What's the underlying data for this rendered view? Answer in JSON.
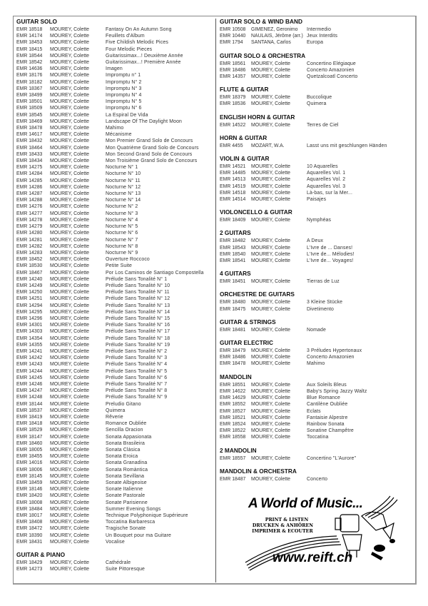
{
  "left_sections": [
    {
      "heading": "GUITAR SOLO",
      "rows": [
        [
          "EMR 18518",
          "MOUREY, Colette",
          "Fantasy On An Autumn Song"
        ],
        [
          "EMR 14174",
          "MOUREY, Colette",
          "Feuillets d'Album"
        ],
        [
          "EMR 18453",
          "MOUREY, Colette",
          "Five Childish Melodic Pices"
        ],
        [
          "EMR 18415",
          "MOUREY, Colette",
          "Four Melodic Pieces"
        ],
        [
          "EMR 18544",
          "MOUREY, Colette",
          "Guitarissimax...! Deuxième Année"
        ],
        [
          "EMR 18542",
          "MOUREY, Colette",
          "Guitarissimax...! Première Année"
        ],
        [
          "EMR 14636",
          "MOUREY, Colette",
          "Imagen"
        ],
        [
          "EMR 18176",
          "MOUREY, Colette",
          "Impromptu n° 1"
        ],
        [
          "EMR 18182",
          "MOUREY, Colette",
          "Impromptu N° 2"
        ],
        [
          "EMR 18367",
          "MOUREY, Colette",
          "Impromptu N° 3"
        ],
        [
          "EMR 18499",
          "MOUREY, Colette",
          "Impromptu N° 4"
        ],
        [
          "EMR 18501",
          "MOUREY, Colette",
          "Impromptu N° 5"
        ],
        [
          "EMR 18509",
          "MOUREY, Colette",
          "Impromptu N° 6"
        ],
        [
          "EMR 18545",
          "MOUREY, Colette",
          "La Espiral De Vida"
        ],
        [
          "EMR 18469",
          "MOUREY, Colette",
          "Landscape Of The Daylight Moon"
        ],
        [
          "EMR 18478",
          "MOUREY, Colette",
          "Mahimo"
        ],
        [
          "EMR 14617",
          "MOUREY, Colette",
          "Mécanisme"
        ],
        [
          "EMR 18432",
          "MOUREY, Colette",
          "Mon Premier Grand Solo de Concours"
        ],
        [
          "EMR 18464",
          "MOUREY, Colette",
          "Mon Quatrième Grand Solo de Concours"
        ],
        [
          "EMR 18433",
          "MOUREY, Colette",
          "Mon Second Grand Solo de Concours"
        ],
        [
          "EMR 18434",
          "MOUREY, Colette",
          "Mon Troisième Grand Solo de Concours"
        ],
        [
          "EMR 14275",
          "MOUREY, Colette",
          "Nocturne N° 1"
        ],
        [
          "EMR 14284",
          "MOUREY, Colette",
          "Nocturne N° 10"
        ],
        [
          "EMR 14285",
          "MOUREY, Colette",
          "Nocturne N° 11"
        ],
        [
          "EMR 14286",
          "MOUREY, Colette",
          "Nocturne N° 12"
        ],
        [
          "EMR 14287",
          "MOUREY, Colette",
          "Nocturne N° 13"
        ],
        [
          "EMR 14288",
          "MOUREY, Colette",
          "Nocturne N° 14"
        ],
        [
          "EMR 14276",
          "MOUREY, Colette",
          "Nocturne N° 2"
        ],
        [
          "EMR 14277",
          "MOUREY, Colette",
          "Nocturne N° 3"
        ],
        [
          "EMR 14278",
          "MOUREY, Colette",
          "Nocturne N° 4"
        ],
        [
          "EMR 14279",
          "MOUREY, Colette",
          "Nocturne N° 5"
        ],
        [
          "EMR 14280",
          "MOUREY, Colette",
          "Nocturne N° 6"
        ],
        [
          "EMR 14281",
          "MOUREY, Colette",
          "Nocturne N° 7"
        ],
        [
          "EMR 14282",
          "MOUREY, Colette",
          "Nocturne N° 8"
        ],
        [
          "EMR 14283",
          "MOUREY, Colette",
          "Nocturne N° 9"
        ],
        [
          "EMR 18452",
          "MOUREY, Colette",
          "Ouverture Roccoco"
        ],
        [
          "EMR 18530",
          "MOUREY, Colette",
          "Petite Suite"
        ],
        [
          "EMR 18467",
          "MOUREY, Colette",
          "Por Los Caminos de Santiago Compostella"
        ],
        [
          "EMR 14240",
          "MOUREY, Colette",
          "Prélude Sans Tonalité N° 1"
        ],
        [
          "EMR 14249",
          "MOUREY, Colette",
          "Prélude Sans Tonalité N° 10"
        ],
        [
          "EMR 14250",
          "MOUREY, Colette",
          "Prélude Sans Tonalité N° 11"
        ],
        [
          "EMR 14251",
          "MOUREY, Colette",
          "Prélude Sans Tonalité N° 12"
        ],
        [
          "EMR 14294",
          "MOUREY, Colette",
          "Prélude Sans Tonalité N° 13"
        ],
        [
          "EMR 14295",
          "MOUREY, Colette",
          "Prélude Sans Tonalité N° 14"
        ],
        [
          "EMR 14296",
          "MOUREY, Colette",
          "Prélude Sans Tonalité N° 15"
        ],
        [
          "EMR 14301",
          "MOUREY, Colette",
          "Prélude Sans Tonalité N° 16"
        ],
        [
          "EMR 14303",
          "MOUREY, Colette",
          "Prélude Sans Tonalité N° 17"
        ],
        [
          "EMR 14354",
          "MOUREY, Colette",
          "Prélude Sans Tonalité N° 18"
        ],
        [
          "EMR 14355",
          "MOUREY, Colette",
          "Prélude Sans Tonalité N° 19"
        ],
        [
          "EMR 14241",
          "MOUREY, Colette",
          "Prélude Sans Tonalité N° 2"
        ],
        [
          "EMR 14242",
          "MOUREY, Colette",
          "Prélude Sans Tonalité N° 3"
        ],
        [
          "EMR 14243",
          "MOUREY, Colette",
          "Prélude Sans Tonalité N° 4"
        ],
        [
          "EMR 14244",
          "MOUREY, Colette",
          "Prélude Sans Tonalité N° 5"
        ],
        [
          "EMR 14245",
          "MOUREY, Colette",
          "Prélude Sans Tonalité N° 6"
        ],
        [
          "EMR 14246",
          "MOUREY, Colette",
          "Prélude Sans Tonalité N° 7"
        ],
        [
          "EMR 14247",
          "MOUREY, Colette",
          "Prélude Sans Tonalité N° 8"
        ],
        [
          "EMR 14248",
          "MOUREY, Colette",
          "Prélude Sans Tonalité N° 9"
        ],
        [
          "EMR 18144",
          "MOUREY, Colette",
          "Preludio Gitano"
        ],
        [
          "EMR 18537",
          "MOUREY, Colette",
          "Quimera"
        ],
        [
          "EMR 18419",
          "MOUREY, Colette",
          "Rêverie"
        ],
        [
          "EMR 18418",
          "MOUREY, Colette",
          "Romance Oubliée"
        ],
        [
          "EMR 18529",
          "MOUREY, Colette",
          "Sencilla Oracion"
        ],
        [
          "EMR 18147",
          "MOUREY, Colette",
          "Sonata Appasionata"
        ],
        [
          "EMR 18460",
          "MOUREY, Colette",
          "Sonata Brasileira"
        ],
        [
          "EMR 18005",
          "MOUREY, Colette",
          "Sonata Clàsica"
        ],
        [
          "EMR 18455",
          "MOUREY, Colette",
          "Sonata Eroica"
        ],
        [
          "EMR 14016",
          "MOUREY, Colette",
          "Sonata Granadina"
        ],
        [
          "EMR 18006",
          "MOUREY, Colette",
          "Sonata Romàntica"
        ],
        [
          "EMR 18145",
          "MOUREY, Colette",
          "Sonata Sevillana"
        ],
        [
          "EMR 18459",
          "MOUREY, Colette",
          "Sonate Albigeoise"
        ],
        [
          "EMR 18146",
          "MOUREY, Colette",
          "Sonate Italienne"
        ],
        [
          "EMR 18420",
          "MOUREY, Colette",
          "Sonate Pastorale"
        ],
        [
          "EMR 18008",
          "MOUREY, Colette",
          "Sonate Parisienne"
        ],
        [
          "EMR 18484",
          "MOUREY, Colette",
          "Summer Evening Songs"
        ],
        [
          "EMR 18017",
          "MOUREY, Colette",
          "Technique Polyphonique Supérieure"
        ],
        [
          "EMR 18408",
          "MOUREY, Colette",
          "Toccatina Barbaresca"
        ],
        [
          "EMR 18472",
          "MOUREY, Colette",
          "Tragische Sonate"
        ],
        [
          "EMR 18390",
          "MOUREY, Colette",
          "Un Bouquet pour ma Guitare"
        ],
        [
          "EMR 18431",
          "MOUREY, Colette",
          "Vocalise"
        ]
      ]
    },
    {
      "heading": "GUITAR & PIANO",
      "rows": [
        [
          "EMR 18429",
          "MOUREY, Colette",
          "Cathédrale"
        ],
        [
          "EMR 14273",
          "MOUREY, Colette",
          "Suite Pittoresque"
        ]
      ]
    }
  ],
  "right_sections": [
    {
      "heading": "GUITAR SOLO & WIND BAND",
      "rows": [
        [
          "EMR 10508",
          "GIMENEZ, Geronimo",
          "Intermedio"
        ],
        [
          "EMR 10440",
          "NAULAIS, Jérôme (arr.)",
          "Jeux Interdits"
        ],
        [
          "EMR 1794",
          "SANTANA, Carlos",
          "Europa"
        ]
      ]
    },
    {
      "heading": "GUITAR SOLO & ORCHESTRA",
      "rows": [
        [
          "EMR 18561",
          "MOUREY, Colette",
          "Concertino Elégiaque"
        ],
        [
          "EMR 18486",
          "MOUREY, Colette",
          "Concerto Amazonien"
        ],
        [
          "EMR 14357",
          "MOUREY, Colette",
          "Quetzalcoatl Concerto"
        ]
      ]
    },
    {
      "heading": "FLUTE & GUITAR",
      "rows": [
        [
          "EMR 18379",
          "MOUREY, Colette",
          "Buccolique"
        ],
        [
          "EMR 18536",
          "MOUREY, Colette",
          "Quimera"
        ]
      ]
    },
    {
      "heading": "ENGLISH HORN & GUITAR",
      "rows": [
        [
          "EMR 14522",
          "MOUREY, Colette",
          "Terres de Ciel"
        ]
      ]
    },
    {
      "heading": "HORN & GUITAR",
      "rows": [
        [
          "EMR 4455",
          "MOZART, W.A.",
          "Lasst uns mit geschlungen Händen"
        ]
      ]
    },
    {
      "heading": "VIOLIN & GUITAR",
      "rows": [
        [
          "EMR 14521",
          "MOUREY, Colette",
          "10 Aquarelles"
        ],
        [
          "EMR 14485",
          "MOUREY, Colette",
          "Aquarelles Vol. 1"
        ],
        [
          "EMR 14513",
          "MOUREY, Colette",
          "Aquarelles Vol. 2"
        ],
        [
          "EMR 14519",
          "MOUREY, Colette",
          "Aquarelles Vol. 3"
        ],
        [
          "EMR 14518",
          "MOUREY, Colette",
          "Là-bas, sur la Mer..."
        ],
        [
          "EMR 14514",
          "MOUREY, Colette",
          "Paisajes"
        ]
      ]
    },
    {
      "heading": "VIOLONCELLO & GUITAR",
      "rows": [
        [
          "EMR 18409",
          "MOUREY, Colette",
          "Nymphéas"
        ]
      ]
    },
    {
      "heading": "2 GUITARS",
      "rows": [
        [
          "EMR 18482",
          "MOUREY, Colette",
          "A Deux"
        ],
        [
          "EMR 18543",
          "MOUREY, Colette",
          "L'Ivre de ... Danses!"
        ],
        [
          "EMR 18540",
          "MOUREY, Colette",
          "L'Ivre de... Mélodies!"
        ],
        [
          "EMR 18541",
          "MOUREY, Colette",
          "L'Ivre de... Voyages!"
        ]
      ]
    },
    {
      "heading": "4 GUITARS",
      "rows": [
        [
          "EMR 18451",
          "MOUREY, Colette",
          "Tierras de Luz"
        ]
      ]
    },
    {
      "heading": "ORCHESTRE DE GUITARS",
      "rows": [
        [
          "EMR 18480",
          "MOUREY, Colette",
          "3 Kleine Stücke"
        ],
        [
          "EMR 18475",
          "MOUREY, Colette",
          "Divetimento"
        ]
      ]
    },
    {
      "heading": "GUITAR & STRINGS",
      "rows": [
        [
          "EMR 18481",
          "MOUREY, Colette",
          "Nomade"
        ]
      ]
    },
    {
      "heading": "GUITAR ELECTRIC",
      "rows": [
        [
          "EMR 18479",
          "MOUREY, Colette",
          "3 Préludes Hypertonaux"
        ],
        [
          "EMR 18486",
          "MOUREY, Colette",
          "Concerto Amazonien"
        ],
        [
          "EMR 18478",
          "MOUREY, Colette",
          "Mahimo"
        ]
      ]
    },
    {
      "heading": "MANDOLIN",
      "rows": [
        [
          "EMR 18551",
          "MOUREY, Colette",
          "Aux Soleils Bleus"
        ],
        [
          "EMR 14622",
          "MOUREY, Colette",
          "Baby's Spring Jazzy Waltz"
        ],
        [
          "EMR 14629",
          "MOUREY, Colette",
          "Blue Romance"
        ],
        [
          "EMR 18552",
          "MOUREY, Colette",
          "Cantilène Oubliée"
        ],
        [
          "EMR 18527",
          "MOUREY, Colette",
          "Eclats"
        ],
        [
          "EMR 18521",
          "MOUREY, Colette",
          "Fantaisie Alpestre"
        ],
        [
          "EMR 18524",
          "MOUREY, Colette",
          "Rainbow Sonata"
        ],
        [
          "EMR 18522",
          "MOUREY, Colette",
          "Sonatine Champêtre"
        ],
        [
          "EMR 18558",
          "MOUREY, Colette",
          "Toccatina"
        ]
      ]
    },
    {
      "heading": "2 MANDOLIN",
      "rows": [
        [
          "EMR 18557",
          "MOUREY, Colette",
          "Concertino \"L'Aurore\""
        ]
      ]
    },
    {
      "heading": "MANDOLIN & ORCHESTRA",
      "rows": [
        [
          "EMR 18487",
          "MOUREY, Colette",
          "Concerto"
        ]
      ]
    }
  ],
  "logo": {
    "headline": "A World of Music...",
    "taglines": [
      "PRINT & LISTEN",
      "DRUCKEN & ANHÖREN",
      "IMPRIMER & ECOUTER"
    ],
    "url": "www.reift.ch"
  }
}
